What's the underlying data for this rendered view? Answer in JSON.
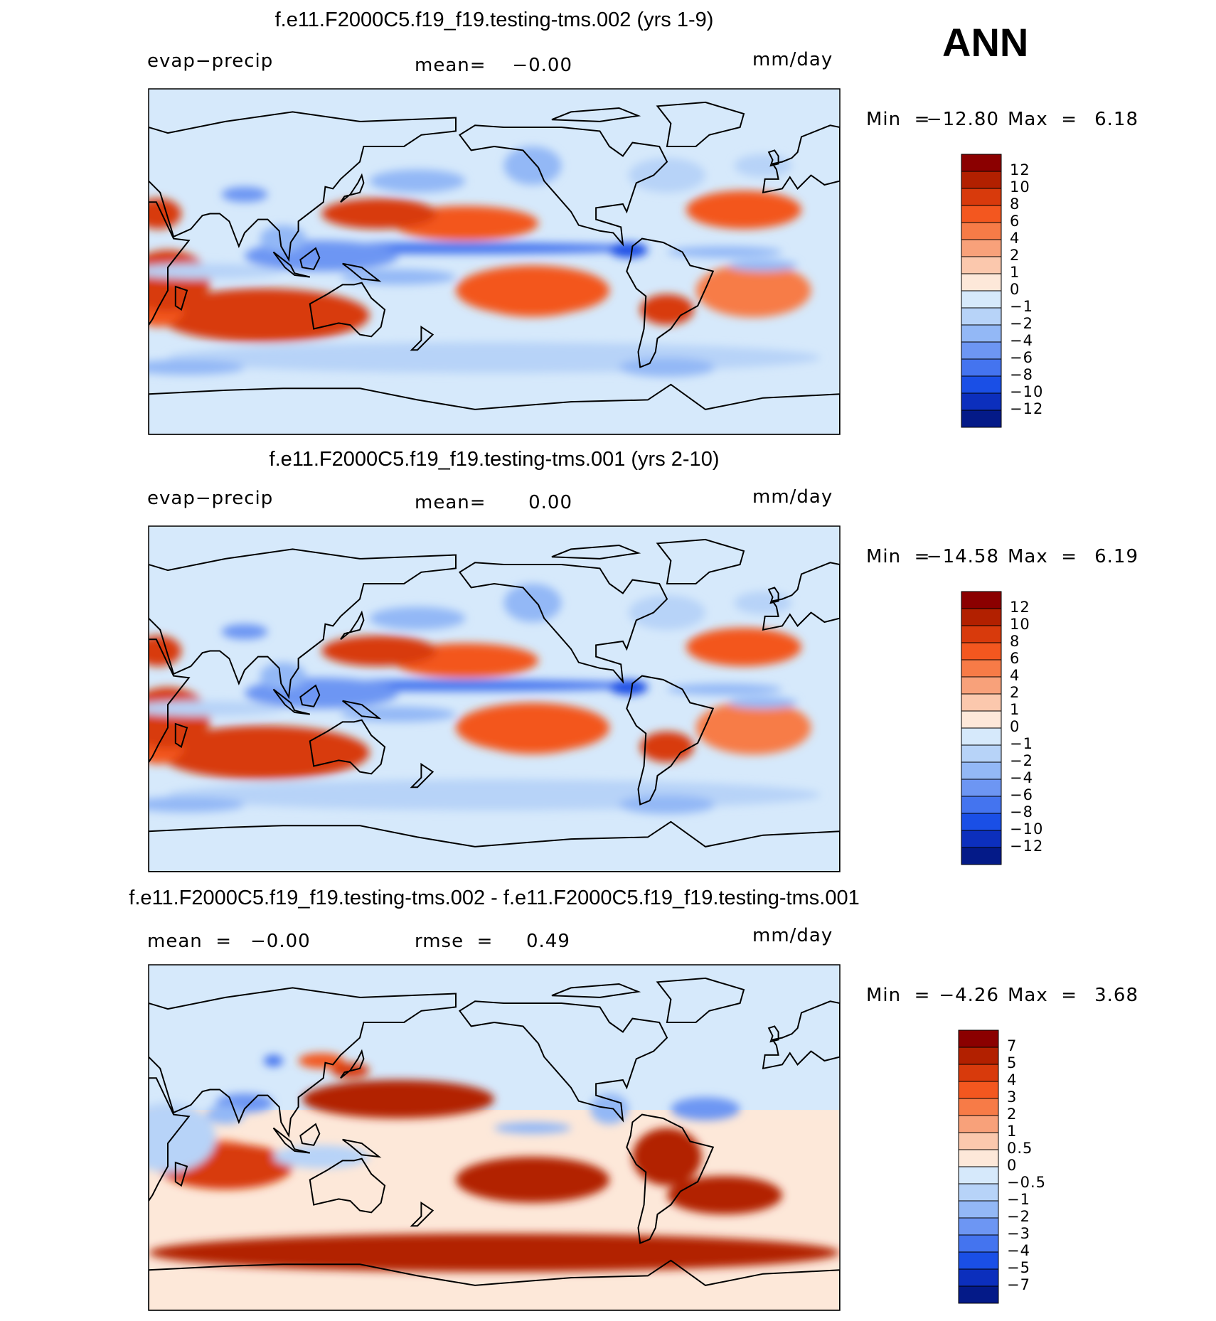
{
  "season": "ANN",
  "chart_data": [
    {
      "type": "heatmap",
      "title": "f.e11.F2000C5.f19_f19.testing-tms.002 (yrs 1-9)",
      "variable": "evap−precip",
      "stat_left_label": "",
      "stat_left_value": "",
      "stat_mid_label": "mean=",
      "stat_mid_value": "−0.00",
      "units": "mm/day",
      "min_label": "Min  =",
      "min_value": "−12.80",
      "max_label": "Max  =",
      "max_value": "6.18",
      "min": -12.8,
      "max": 6.18,
      "mean": -0.0,
      "colorbar": {
        "ticks": [
          "12",
          "10",
          "8",
          "6",
          "4",
          "2",
          "1",
          "0",
          "−1",
          "−2",
          "−4",
          "−6",
          "−8",
          "−10",
          "−12"
        ],
        "colors": [
          "#8b0000",
          "#b22000",
          "#d83a0c",
          "#f3571f",
          "#f77b47",
          "#f8a17a",
          "#fbc8ad",
          "#fde8d9",
          "#d6e9fb",
          "#b7d3f8",
          "#93b8f6",
          "#6d96f3",
          "#4474ef",
          "#1a4fe6",
          "#0c2fbd",
          "#041a88"
        ]
      }
    },
    {
      "type": "heatmap",
      "title": "f.e11.F2000C5.f19_f19.testing-tms.001 (yrs 2-10)",
      "variable": "evap−precip",
      "stat_left_label": "",
      "stat_left_value": "",
      "stat_mid_label": "mean=",
      "stat_mid_value": "0.00",
      "units": "mm/day",
      "min_label": "Min  =",
      "min_value": "−14.58",
      "max_label": "Max  =",
      "max_value": "6.19",
      "min": -14.58,
      "max": 6.19,
      "mean": 0.0,
      "colorbar": {
        "ticks": [
          "12",
          "10",
          "8",
          "6",
          "4",
          "2",
          "1",
          "0",
          "−1",
          "−2",
          "−4",
          "−6",
          "−8",
          "−10",
          "−12"
        ],
        "colors": [
          "#8b0000",
          "#b22000",
          "#d83a0c",
          "#f3571f",
          "#f77b47",
          "#f8a17a",
          "#fbc8ad",
          "#fde8d9",
          "#d6e9fb",
          "#b7d3f8",
          "#93b8f6",
          "#6d96f3",
          "#4474ef",
          "#1a4fe6",
          "#0c2fbd",
          "#041a88"
        ]
      }
    },
    {
      "type": "heatmap",
      "title": "f.e11.F2000C5.f19_f19.testing-tms.002 - f.e11.F2000C5.f19_f19.testing-tms.001",
      "variable": "",
      "stat_left_label": "mean  =",
      "stat_left_value": "−0.00",
      "stat_mid_label": "rmse  =",
      "stat_mid_value": "0.49",
      "units": "mm/day",
      "min_label": "Min  =",
      "min_value": "−4.26",
      "max_label": "Max  =",
      "max_value": "3.68",
      "min": -4.26,
      "max": 3.68,
      "mean": -0.0,
      "rmse": 0.49,
      "colorbar": {
        "ticks": [
          "7",
          "5",
          "4",
          "3",
          "2",
          "1",
          "0.5",
          "0",
          "−0.5",
          "−1",
          "−2",
          "−3",
          "−4",
          "−5",
          "−7"
        ],
        "colors": [
          "#8b0000",
          "#b22000",
          "#d83a0c",
          "#f3571f",
          "#f77b47",
          "#f8a17a",
          "#fbc8ad",
          "#fde8d9",
          "#d6e9fb",
          "#b7d3f8",
          "#93b8f6",
          "#6d96f3",
          "#4474ef",
          "#1a4fe6",
          "#0c2fbd",
          "#041a88"
        ]
      }
    }
  ]
}
